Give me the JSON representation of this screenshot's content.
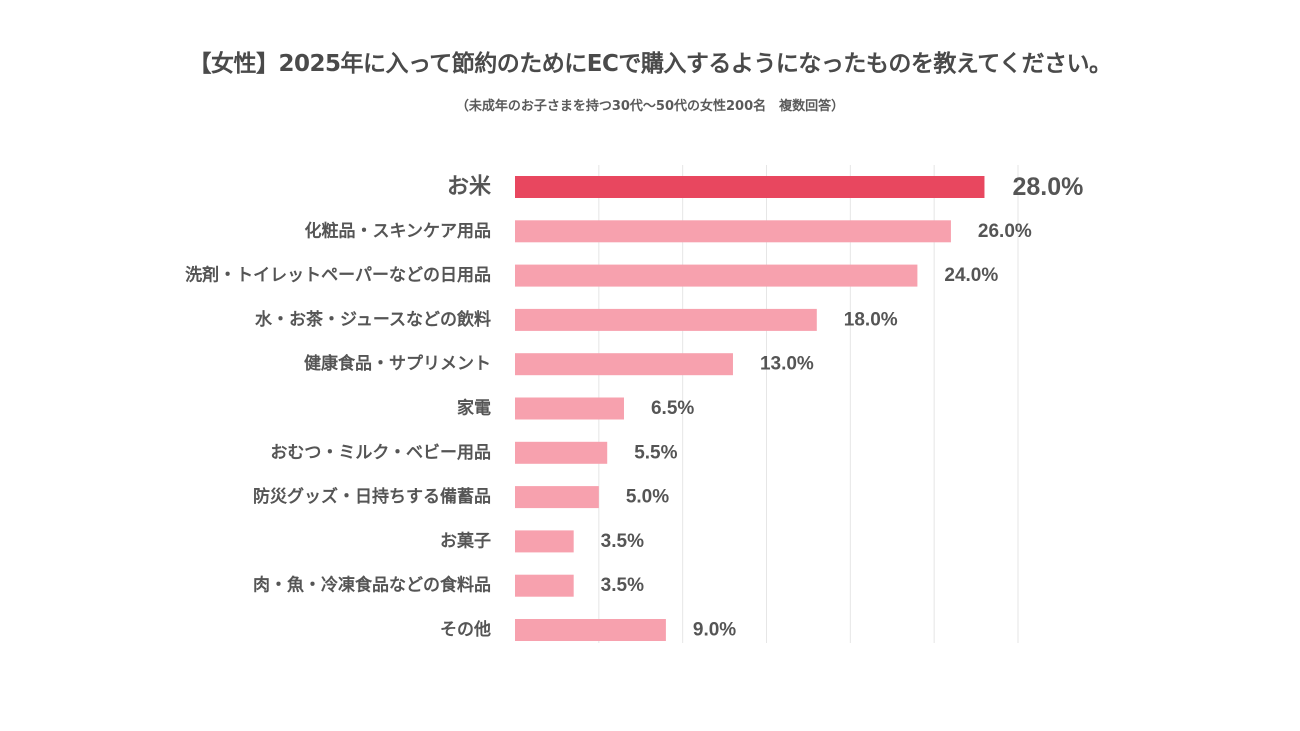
{
  "title": "【女性】2025年に入って節約のためにECで購入するようになったものを教えてください。",
  "subtitle": "（未成年のお子さまを持つ30代〜50代の女性200名　複数回答）",
  "colors": {
    "highlight_bar": "#e8475f",
    "normal_bar": "#f7a1ae",
    "highlight_text": "#e60012",
    "normal_text": "#555555",
    "gridline": "#e6e6e6"
  },
  "chart_data": {
    "type": "bar",
    "orientation": "horizontal",
    "categories": [
      "お米",
      "化粧品・スキンケア用品",
      "洗剤・トイレットペーパーなどの日用品",
      "水・お茶・ジュースなどの飲料",
      "健康食品・サプリメント",
      "家電",
      "おむつ・ミルク・ベビー用品",
      "防災グッズ・日持ちする備蓄品",
      "お菓子",
      "肉・魚・冷凍食品などの食料品",
      "その他"
    ],
    "values": [
      28.0,
      26.0,
      24.0,
      18.0,
      13.0,
      6.5,
      5.5,
      5.0,
      3.5,
      3.5,
      9.0
    ],
    "value_labels": [
      "28.0%",
      "26.0%",
      "24.0%",
      "18.0%",
      "13.0%",
      "6.5%",
      "5.5%",
      "5.0%",
      "3.5%",
      "3.5%",
      "9.0%"
    ],
    "highlight_index": 0,
    "xlim": [
      0,
      30
    ],
    "grid": true,
    "legend": "none"
  }
}
